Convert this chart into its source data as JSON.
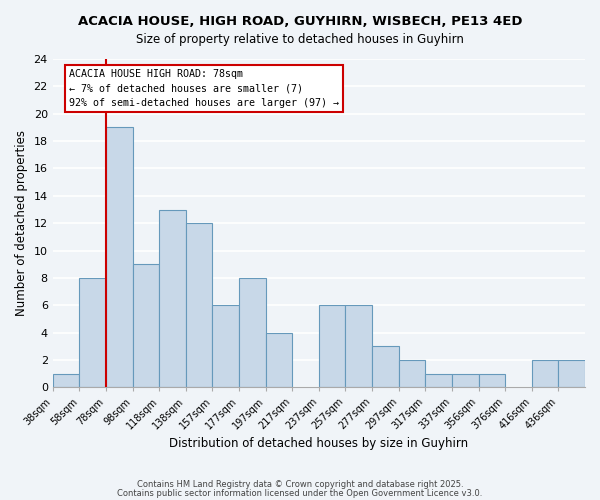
{
  "title": "ACACIA HOUSE, HIGH ROAD, GUYHIRN, WISBECH, PE13 4ED",
  "subtitle": "Size of property relative to detached houses in Guyhirn",
  "xlabel": "Distribution of detached houses by size in Guyhirn",
  "ylabel": "Number of detached properties",
  "bin_labels": [
    "38sqm",
    "58sqm",
    "78sqm",
    "98sqm",
    "118sqm",
    "138sqm",
    "157sqm",
    "177sqm",
    "197sqm",
    "217sqm",
    "237sqm",
    "257sqm",
    "277sqm",
    "297sqm",
    "317sqm",
    "337sqm",
    "356sqm",
    "376sqm",
    "416sqm",
    "436sqm"
  ],
  "bar_values": [
    1,
    8,
    19,
    9,
    13,
    12,
    6,
    8,
    4,
    0,
    6,
    6,
    3,
    2,
    1,
    1,
    1,
    0,
    2,
    2
  ],
  "bar_color": "#c8d8e8",
  "bar_edge_color": "#6699bb",
  "reference_line_x": 2,
  "reference_line_color": "#cc0000",
  "ylim": [
    0,
    24
  ],
  "yticks": [
    0,
    2,
    4,
    6,
    8,
    10,
    12,
    14,
    16,
    18,
    20,
    22,
    24
  ],
  "annotation_text": "ACACIA HOUSE HIGH ROAD: 78sqm\n← 7% of detached houses are smaller (7)\n92% of semi-detached houses are larger (97) →",
  "annotation_box_color": "#ffffff",
  "annotation_box_edge_color": "#cc0000",
  "footer_line1": "Contains HM Land Registry data © Crown copyright and database right 2025.",
  "footer_line2": "Contains public sector information licensed under the Open Government Licence v3.0.",
  "bg_color": "#f0f4f8",
  "grid_color": "#ffffff"
}
